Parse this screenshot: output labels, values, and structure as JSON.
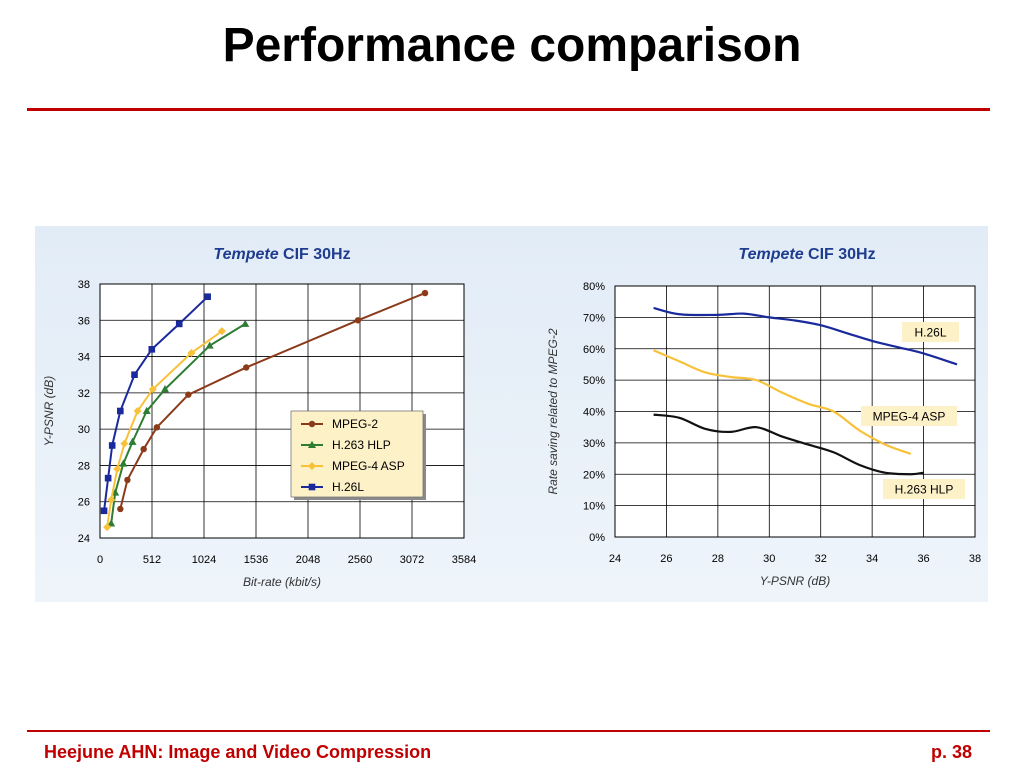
{
  "slide": {
    "title": "Performance comparison",
    "footer_left": "Heejune AHN: Image and Video Compression",
    "footer_right": "p. 38"
  },
  "chart_data": [
    {
      "type": "line",
      "title_italic": "Tempete",
      "title_rest": " CIF 30Hz",
      "xlabel": "Bit-rate (kbit/s)",
      "ylabel": "Y-PSNR (dB)",
      "xlim": [
        0,
        3584
      ],
      "ylim": [
        24,
        38
      ],
      "xticks": [
        0,
        512,
        1024,
        1536,
        2048,
        2560,
        3072,
        3584
      ],
      "yticks": [
        24,
        26,
        28,
        30,
        32,
        34,
        36,
        38
      ],
      "grid": true,
      "legend_position": "center-right",
      "series": [
        {
          "name": "MPEG-2",
          "color": "#8b3a1a",
          "marker": "circle",
          "points": [
            [
              200,
              25.6
            ],
            [
              270,
              27.2
            ],
            [
              430,
              28.9
            ],
            [
              560,
              30.1
            ],
            [
              870,
              31.9
            ],
            [
              1440,
              33.4
            ],
            [
              2540,
              36.0
            ],
            [
              3200,
              37.5
            ]
          ]
        },
        {
          "name": "H.263 HLP",
          "color": "#2e7d32",
          "marker": "triangle",
          "points": [
            [
              110,
              24.8
            ],
            [
              150,
              26.5
            ],
            [
              230,
              28.1
            ],
            [
              320,
              29.3
            ],
            [
              460,
              31.0
            ],
            [
              640,
              32.2
            ],
            [
              1080,
              34.6
            ],
            [
              1430,
              35.8
            ]
          ]
        },
        {
          "name": "MPEG-4 ASP",
          "color": "#f7c23a",
          "marker": "diamond",
          "points": [
            [
              70,
              24.6
            ],
            [
              110,
              26.1
            ],
            [
              170,
              27.8
            ],
            [
              240,
              29.2
            ],
            [
              370,
              31.0
            ],
            [
              520,
              32.2
            ],
            [
              900,
              34.2
            ],
            [
              1200,
              35.4
            ]
          ]
        },
        {
          "name": "H.26L",
          "color": "#1a2a9c",
          "marker": "square",
          "points": [
            [
              40,
              25.5
            ],
            [
              80,
              27.3
            ],
            [
              120,
              29.1
            ],
            [
              200,
              31.0
            ],
            [
              340,
              33.0
            ],
            [
              510,
              34.4
            ],
            [
              780,
              35.8
            ],
            [
              1060,
              37.3
            ]
          ]
        }
      ]
    },
    {
      "type": "line",
      "title_italic": "Tempete",
      "title_rest": " CIF 30Hz",
      "xlabel": "Y-PSNR (dB)",
      "ylabel": "Rate saving related to MPEG-2",
      "xlim": [
        24,
        38
      ],
      "ylim": [
        0,
        80
      ],
      "xticks": [
        24,
        26,
        28,
        30,
        32,
        34,
        36,
        38
      ],
      "yticks": [
        "0%",
        "10%",
        "20%",
        "30%",
        "40%",
        "50%",
        "60%",
        "70%",
        "80%"
      ],
      "grid": true,
      "series": [
        {
          "name": "H.26L",
          "color": "#1a2a9c",
          "points": [
            [
              25.5,
              73
            ],
            [
              26.5,
              71
            ],
            [
              28,
              70.8
            ],
            [
              29,
              71.2
            ],
            [
              30,
              70
            ],
            [
              31,
              69
            ],
            [
              32,
              67.5
            ],
            [
              33,
              65
            ],
            [
              34,
              62.5
            ],
            [
              35,
              60.5
            ],
            [
              36,
              58.5
            ],
            [
              37.3,
              55
            ]
          ]
        },
        {
          "name": "MPEG-4 ASP",
          "color": "#f7c23a",
          "points": [
            [
              25.5,
              59.5
            ],
            [
              26.5,
              56
            ],
            [
              27.5,
              52.5
            ],
            [
              28.5,
              51
            ],
            [
              29.5,
              50
            ],
            [
              30.5,
              46
            ],
            [
              31.5,
              42.5
            ],
            [
              32.5,
              40
            ],
            [
              33.5,
              34
            ],
            [
              34.5,
              29.5
            ],
            [
              35.5,
              26.5
            ]
          ]
        },
        {
          "name": "H.263 HLP",
          "color": "#111111",
          "points": [
            [
              25.5,
              39
            ],
            [
              26.5,
              38
            ],
            [
              27.5,
              34.5
            ],
            [
              28.5,
              33.5
            ],
            [
              29.5,
              35
            ],
            [
              30.5,
              32
            ],
            [
              31.5,
              29.5
            ],
            [
              32.5,
              27
            ],
            [
              33.5,
              23
            ],
            [
              34.5,
              20.5
            ],
            [
              35.5,
              20
            ],
            [
              36,
              20.5
            ]
          ]
        }
      ]
    }
  ]
}
